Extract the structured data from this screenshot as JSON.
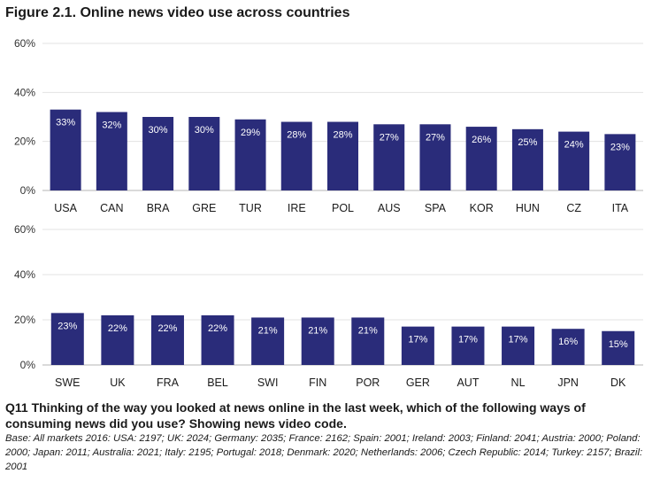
{
  "figure": {
    "title": "Figure 2.1. Online news video use across countries",
    "question": "Q11 Thinking of the way you looked at news online in the last week, which of the following ways of consuming news did you use? Showing news video code.",
    "base_note": "Base: All markets 2016: USA: 2197; UK: 2024; Germany: 2035; France: 2162; Spain: 2001; Ireland: 2003; Finland: 2041; Austria: 2000; Poland: 2000; Japan: 2011; Australia: 2021; Italy: 2195; Portugal: 2018; Denmark: 2020; Netherlands: 2006; Czech Republic: 2014; Turkey: 2157; Brazil: 2001"
  },
  "colors": {
    "bar": "#2a2c7a",
    "grid": "#e3e3e3",
    "axis": "#b5b5b5",
    "bar_label": "#ffffff"
  },
  "chart_data": [
    {
      "type": "bar",
      "categories": [
        "USA",
        "CAN",
        "BRA",
        "GRE",
        "TUR",
        "IRE",
        "POL",
        "AUS",
        "SPA",
        "KOR",
        "HUN",
        "CZ",
        "ITA"
      ],
      "values": [
        33,
        32,
        30,
        30,
        29,
        28,
        28,
        27,
        27,
        26,
        25,
        24,
        23
      ],
      "data_labels": [
        "33%",
        "32%",
        "30%",
        "30%",
        "29%",
        "28%",
        "28%",
        "27%",
        "27%",
        "26%",
        "25%",
        "24%",
        "23%"
      ],
      "yticks": [
        0,
        20,
        40,
        60
      ],
      "ytick_labels": [
        "0%",
        "20%",
        "40%",
        "60%"
      ],
      "ylim": [
        0,
        60
      ],
      "grid": true
    },
    {
      "type": "bar",
      "categories": [
        "SWE",
        "UK",
        "FRA",
        "BEL",
        "SWI",
        "FIN",
        "POR",
        "GER",
        "AUT",
        "NL",
        "JPN",
        "DK"
      ],
      "values": [
        23,
        22,
        22,
        22,
        21,
        21,
        21,
        17,
        17,
        17,
        16,
        15
      ],
      "data_labels": [
        "23%",
        "22%",
        "22%",
        "22%",
        "21%",
        "21%",
        "21%",
        "17%",
        "17%",
        "17%",
        "16%",
        "15%"
      ],
      "yticks": [
        0,
        20,
        40,
        60
      ],
      "ytick_labels": [
        "0%",
        "20%",
        "40%",
        "60%"
      ],
      "ylim": [
        0,
        60
      ],
      "grid": true
    }
  ]
}
